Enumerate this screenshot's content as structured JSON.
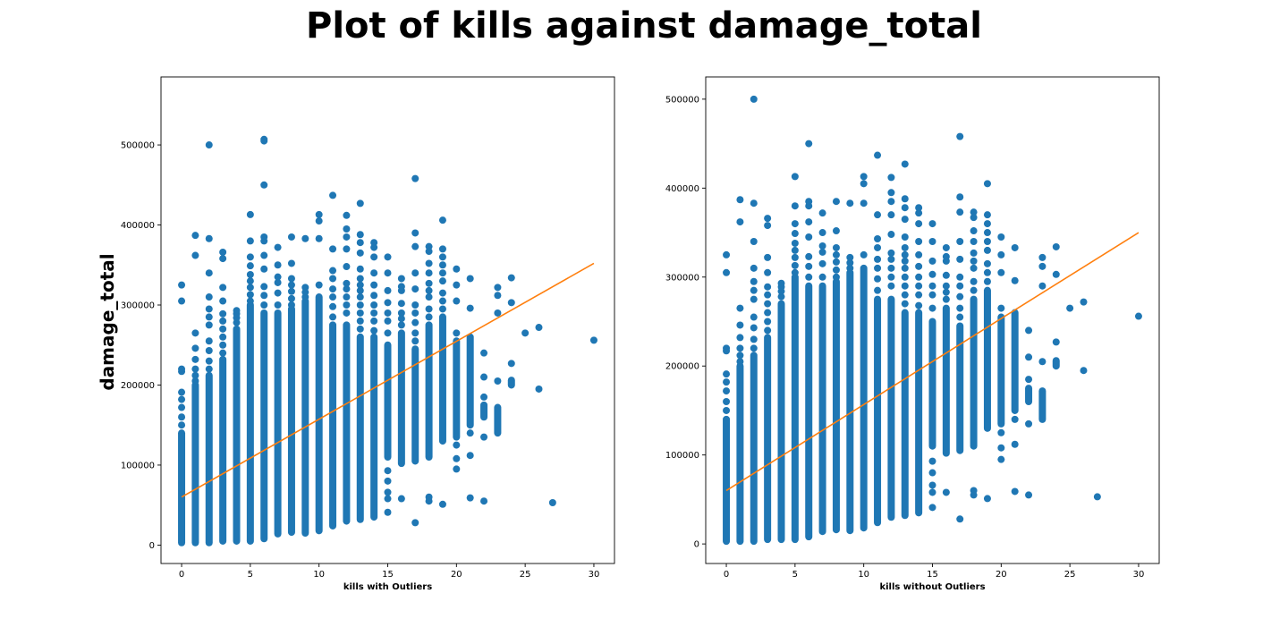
{
  "figure": {
    "title": "Plot of kills against damage_total",
    "ylabel": "damage_total"
  },
  "chart_data": [
    {
      "type": "scatter",
      "xlabel": "kills with Outliers",
      "xlim": [
        -1.5,
        31.5
      ],
      "ylim": [
        -23000,
        585000
      ],
      "x_ticks": [
        0,
        5,
        10,
        15,
        20,
        25,
        30
      ],
      "y_ticks": [
        0,
        100000,
        200000,
        300000,
        400000,
        500000
      ],
      "point_color": "#1f77b4",
      "line_color": "#ff7f0e",
      "grid": false,
      "columns": [
        {
          "x": 0,
          "range": [
            3000,
            140000
          ],
          "outliers": [
            150000,
            160000,
            172000,
            182000,
            191000,
            217000,
            220000,
            305000,
            325000
          ]
        },
        {
          "x": 1,
          "range": [
            3000,
            200000
          ],
          "outliers": [
            205000,
            212000,
            220000,
            232000,
            246000,
            265000,
            362000,
            387000
          ]
        },
        {
          "x": 2,
          "range": [
            3000,
            212000
          ],
          "outliers": [
            220000,
            230000,
            243000,
            255000,
            275000,
            285000,
            295000,
            310000,
            340000,
            383000,
            500000
          ]
        },
        {
          "x": 3,
          "range": [
            5000,
            232000
          ],
          "outliers": [
            240000,
            250000,
            260000,
            270000,
            280000,
            289000,
            305000,
            322000,
            358000,
            366000
          ]
        },
        {
          "x": 4,
          "range": [
            5000,
            270000
          ],
          "outliers": [
            278000,
            284000,
            289000,
            293000
          ]
        },
        {
          "x": 5,
          "range": [
            5000,
            300000
          ],
          "outliers": [
            305000,
            313000,
            322000,
            330000,
            338000,
            349000,
            360000,
            380000,
            413000
          ]
        },
        {
          "x": 6,
          "range": [
            8000,
            290000
          ],
          "outliers": [
            300000,
            312000,
            323000,
            345000,
            362000,
            380000,
            385000,
            450000,
            505000,
            507000
          ]
        },
        {
          "x": 7,
          "range": [
            14000,
            290000
          ],
          "outliers": [
            300000,
            315000,
            328000,
            335000,
            350000,
            372000
          ]
        },
        {
          "x": 8,
          "range": [
            16000,
            295000
          ],
          "outliers": [
            300000,
            308000,
            317000,
            325000,
            333000,
            352000,
            385000
          ]
        },
        {
          "x": 9,
          "range": [
            15000,
            305000
          ],
          "outliers": [
            310000,
            316000,
            322000,
            383000
          ]
        },
        {
          "x": 10,
          "range": [
            18000,
            310000
          ],
          "outliers": [
            325000,
            383000,
            405000,
            413000
          ]
        },
        {
          "x": 11,
          "range": [
            24000,
            275000
          ],
          "outliers": [
            285000,
            298000,
            310000,
            320000,
            333000,
            343000,
            370000,
            437000
          ]
        },
        {
          "x": 12,
          "range": [
            30000,
            275000
          ],
          "outliers": [
            290000,
            300000,
            310000,
            320000,
            327000,
            348000,
            370000,
            385000,
            395000,
            412000
          ]
        },
        {
          "x": 13,
          "range": [
            32000,
            260000
          ],
          "outliers": [
            270000,
            280000,
            290000,
            300000,
            310000,
            318000,
            325000,
            333000,
            345000,
            365000,
            378000,
            388000,
            427000
          ]
        },
        {
          "x": 14,
          "range": [
            35000,
            260000
          ],
          "outliers": [
            268000,
            280000,
            290000,
            300000,
            312000,
            325000,
            340000,
            360000,
            372000,
            378000
          ]
        },
        {
          "x": 15,
          "range": [
            110000,
            250000
          ],
          "outliers": [
            41000,
            58000,
            66000,
            80000,
            93000,
            265000,
            280000,
            290000,
            303000,
            318000,
            340000,
            360000
          ]
        },
        {
          "x": 16,
          "range": [
            102000,
            265000
          ],
          "outliers": [
            58000,
            275000,
            283000,
            290000,
            302000,
            318000,
            323000,
            333000
          ]
        },
        {
          "x": 17,
          "range": [
            105000,
            245000
          ],
          "outliers": [
            28000,
            255000,
            265000,
            278000,
            290000,
            300000,
            320000,
            340000,
            373000,
            390000,
            458000
          ]
        },
        {
          "x": 18,
          "range": [
            110000,
            275000
          ],
          "outliers": [
            55000,
            60000,
            285000,
            295000,
            310000,
            318000,
            327000,
            340000,
            352000,
            367000,
            373000
          ]
        },
        {
          "x": 19,
          "range": [
            130000,
            285000
          ],
          "outliers": [
            51000,
            295000,
            305000,
            315000,
            330000,
            340000,
            350000,
            360000,
            370000,
            406000
          ]
        },
        {
          "x": 20,
          "range": [
            135000,
            255000
          ],
          "outliers": [
            95000,
            108000,
            125000,
            265000,
            305000,
            325000,
            345000
          ]
        },
        {
          "x": 21,
          "range": [
            150000,
            260000
          ],
          "outliers": [
            59000,
            112000,
            140000,
            296000,
            333000
          ]
        },
        {
          "x": 22,
          "range": [
            160000,
            175000
          ],
          "outliers": [
            55000,
            135000,
            185000,
            210000,
            240000
          ]
        },
        {
          "x": 23,
          "range": [
            140000,
            172000
          ],
          "outliers": [
            205000,
            290000,
            312000,
            322000
          ]
        },
        {
          "x": 24,
          "range": [
            200000,
            206000
          ],
          "outliers": [
            227000,
            303000,
            334000
          ]
        },
        {
          "x": 25,
          "range": null,
          "outliers": [
            265000
          ]
        },
        {
          "x": 26,
          "range": null,
          "outliers": [
            195000,
            272000
          ]
        },
        {
          "x": 27,
          "range": null,
          "outliers": [
            53000
          ]
        },
        {
          "x": 30,
          "range": null,
          "outliers": [
            256000
          ]
        }
      ],
      "fit_line": {
        "x": [
          0,
          30
        ],
        "y": [
          60000,
          352000
        ]
      }
    },
    {
      "type": "scatter",
      "xlabel": "kills without Outliers",
      "xlim": [
        -1.5,
        31.5
      ],
      "ylim": [
        -22000,
        525000
      ],
      "x_ticks": [
        0,
        5,
        10,
        15,
        20,
        25,
        30
      ],
      "y_ticks": [
        0,
        100000,
        200000,
        300000,
        400000,
        500000
      ],
      "point_color": "#1f77b4",
      "line_color": "#ff7f0e",
      "grid": false,
      "columns": [
        {
          "x": 0,
          "range": [
            3000,
            140000
          ],
          "outliers": [
            150000,
            160000,
            172000,
            182000,
            191000,
            217000,
            220000,
            305000,
            325000
          ]
        },
        {
          "x": 1,
          "range": [
            3000,
            200000
          ],
          "outliers": [
            205000,
            212000,
            220000,
            232000,
            246000,
            265000,
            362000,
            387000
          ]
        },
        {
          "x": 2,
          "range": [
            3000,
            212000
          ],
          "outliers": [
            220000,
            230000,
            243000,
            255000,
            275000,
            285000,
            295000,
            310000,
            340000,
            383000,
            500000
          ]
        },
        {
          "x": 3,
          "range": [
            5000,
            232000
          ],
          "outliers": [
            240000,
            250000,
            260000,
            270000,
            280000,
            289000,
            305000,
            322000,
            358000,
            366000
          ]
        },
        {
          "x": 4,
          "range": [
            5000,
            270000
          ],
          "outliers": [
            278000,
            284000,
            289000,
            293000
          ]
        },
        {
          "x": 5,
          "range": [
            5000,
            300000
          ],
          "outliers": [
            305000,
            313000,
            322000,
            330000,
            338000,
            349000,
            360000,
            380000,
            413000
          ]
        },
        {
          "x": 6,
          "range": [
            8000,
            290000
          ],
          "outliers": [
            300000,
            312000,
            323000,
            345000,
            362000,
            380000,
            385000,
            450000
          ]
        },
        {
          "x": 7,
          "range": [
            14000,
            290000
          ],
          "outliers": [
            300000,
            315000,
            328000,
            335000,
            350000,
            372000
          ]
        },
        {
          "x": 8,
          "range": [
            16000,
            295000
          ],
          "outliers": [
            300000,
            308000,
            317000,
            325000,
            333000,
            352000,
            385000
          ]
        },
        {
          "x": 9,
          "range": [
            15000,
            305000
          ],
          "outliers": [
            310000,
            316000,
            322000,
            383000
          ]
        },
        {
          "x": 10,
          "range": [
            18000,
            310000
          ],
          "outliers": [
            325000,
            383000,
            405000,
            413000
          ]
        },
        {
          "x": 11,
          "range": [
            24000,
            275000
          ],
          "outliers": [
            285000,
            298000,
            310000,
            320000,
            333000,
            343000,
            370000,
            437000
          ]
        },
        {
          "x": 12,
          "range": [
            30000,
            275000
          ],
          "outliers": [
            290000,
            300000,
            310000,
            320000,
            327000,
            348000,
            370000,
            385000,
            395000,
            412000
          ]
        },
        {
          "x": 13,
          "range": [
            32000,
            260000
          ],
          "outliers": [
            270000,
            280000,
            290000,
            300000,
            310000,
            318000,
            325000,
            333000,
            345000,
            365000,
            378000,
            388000,
            427000
          ]
        },
        {
          "x": 14,
          "range": [
            35000,
            260000
          ],
          "outliers": [
            268000,
            280000,
            290000,
            300000,
            312000,
            325000,
            340000,
            360000,
            372000,
            378000
          ]
        },
        {
          "x": 15,
          "range": [
            110000,
            250000
          ],
          "outliers": [
            41000,
            58000,
            66000,
            80000,
            93000,
            265000,
            280000,
            290000,
            303000,
            318000,
            340000,
            360000
          ]
        },
        {
          "x": 16,
          "range": [
            102000,
            265000
          ],
          "outliers": [
            58000,
            275000,
            283000,
            290000,
            302000,
            318000,
            323000,
            333000
          ]
        },
        {
          "x": 17,
          "range": [
            105000,
            245000
          ],
          "outliers": [
            28000,
            255000,
            265000,
            278000,
            290000,
            300000,
            320000,
            340000,
            373000,
            390000,
            458000
          ]
        },
        {
          "x": 18,
          "range": [
            110000,
            275000
          ],
          "outliers": [
            55000,
            60000,
            285000,
            295000,
            310000,
            318000,
            327000,
            340000,
            352000,
            367000,
            373000
          ]
        },
        {
          "x": 19,
          "range": [
            130000,
            285000
          ],
          "outliers": [
            51000,
            295000,
            305000,
            315000,
            330000,
            340000,
            350000,
            360000,
            370000,
            405000
          ]
        },
        {
          "x": 20,
          "range": [
            135000,
            255000
          ],
          "outliers": [
            95000,
            108000,
            125000,
            265000,
            305000,
            325000,
            345000
          ]
        },
        {
          "x": 21,
          "range": [
            150000,
            260000
          ],
          "outliers": [
            59000,
            112000,
            140000,
            296000,
            333000
          ]
        },
        {
          "x": 22,
          "range": [
            160000,
            175000
          ],
          "outliers": [
            55000,
            135000,
            185000,
            210000,
            240000
          ]
        },
        {
          "x": 23,
          "range": [
            140000,
            172000
          ],
          "outliers": [
            205000,
            290000,
            312000,
            322000
          ]
        },
        {
          "x": 24,
          "range": [
            200000,
            206000
          ],
          "outliers": [
            227000,
            303000,
            334000
          ]
        },
        {
          "x": 25,
          "range": null,
          "outliers": [
            265000
          ]
        },
        {
          "x": 26,
          "range": null,
          "outliers": [
            195000,
            272000
          ]
        },
        {
          "x": 27,
          "range": null,
          "outliers": [
            53000
          ]
        },
        {
          "x": 30,
          "range": null,
          "outliers": [
            256000
          ]
        }
      ],
      "fit_line": {
        "x": [
          0,
          30
        ],
        "y": [
          60000,
          350000
        ]
      }
    }
  ]
}
